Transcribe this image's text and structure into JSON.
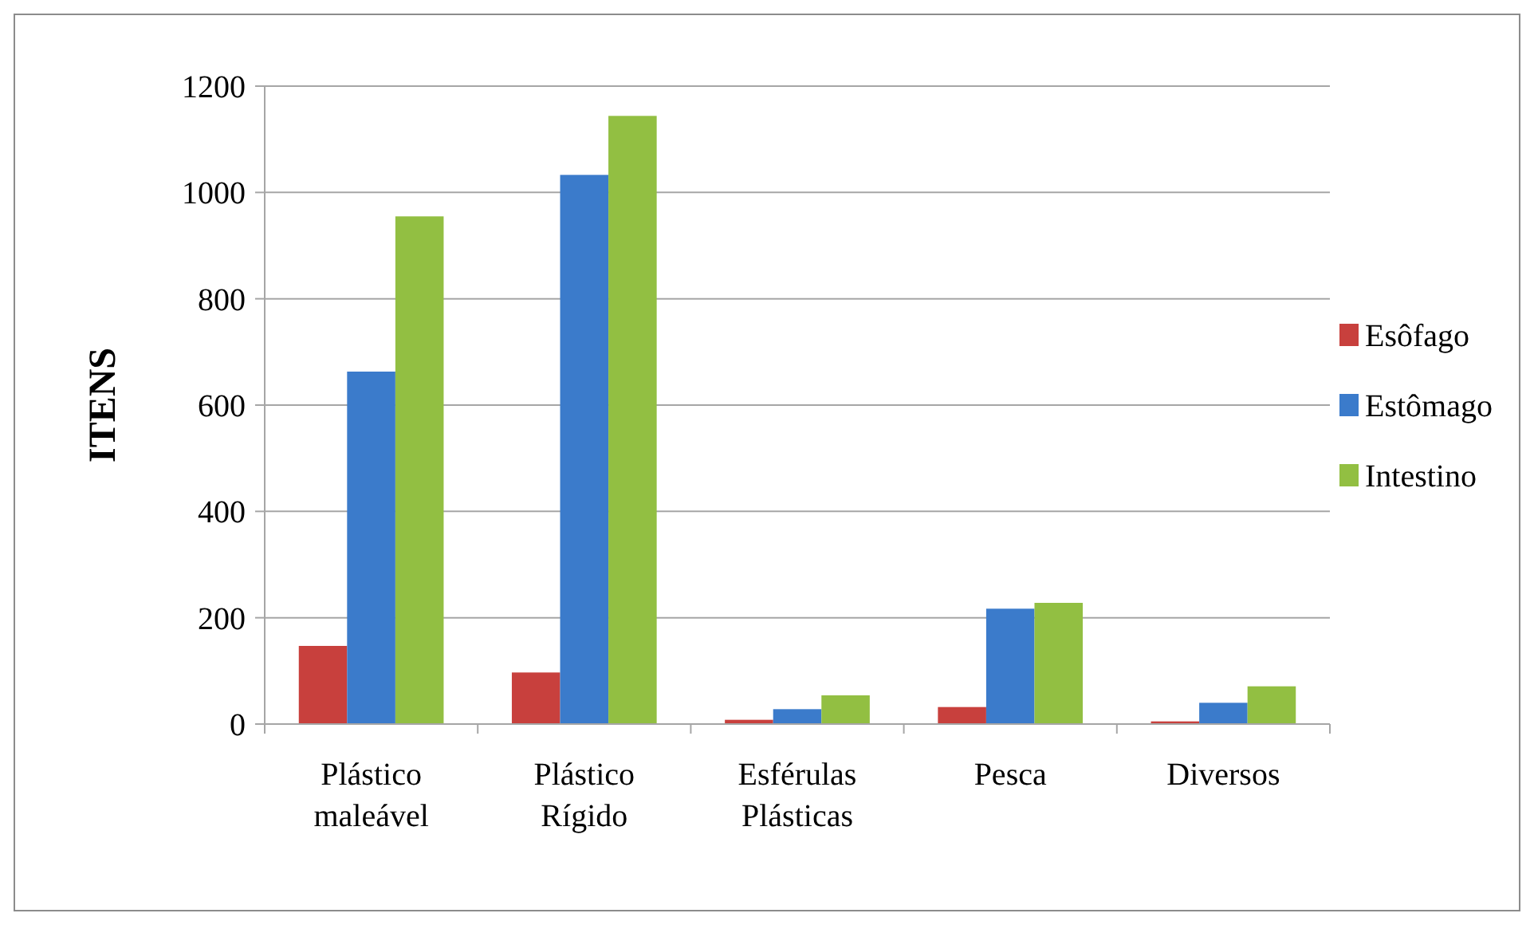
{
  "chart_data": {
    "type": "bar",
    "ylabel": "ITENS",
    "categories": [
      "Plástico\nmaleável",
      "Plástico\nRígido",
      "Esférulas\nPlásticas",
      "Pesca",
      "Diversos"
    ],
    "series": [
      {
        "name": "Esôfago",
        "color": "#c8403d",
        "values": [
          147,
          97,
          8,
          32,
          5
        ]
      },
      {
        "name": "Estômago",
        "color": "#3b7bcb",
        "values": [
          663,
          1033,
          28,
          217,
          40
        ]
      },
      {
        "name": "Intestino",
        "color": "#92bf42",
        "values": [
          955,
          1144,
          54,
          228,
          71
        ]
      }
    ],
    "ylim": [
      0,
      1200
    ],
    "yticks": [
      0,
      200,
      400,
      600,
      800,
      1000,
      1200
    ],
    "grid": "y",
    "legend": "right"
  }
}
